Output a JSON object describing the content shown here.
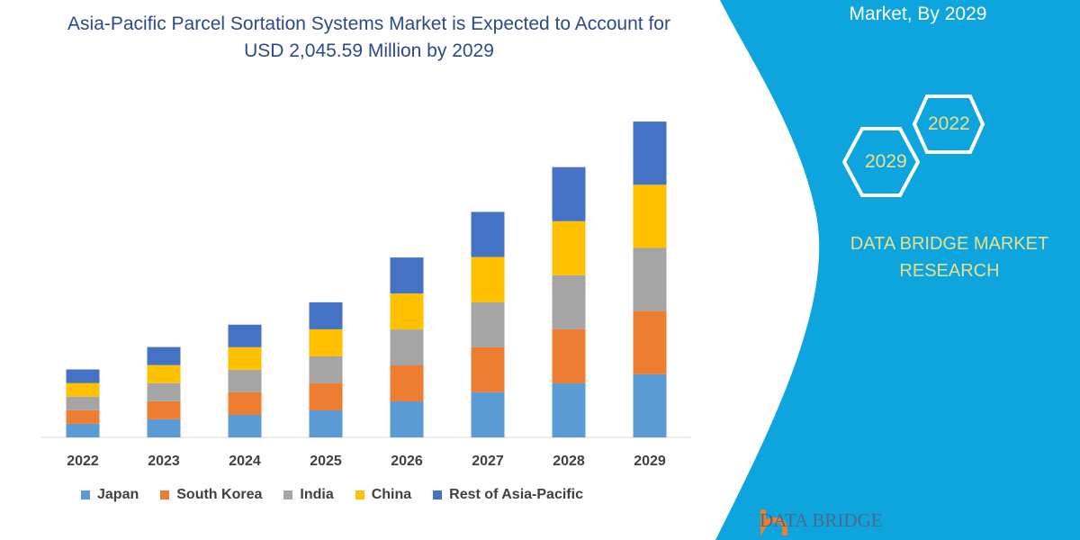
{
  "title_line1": "Asia-Pacific Parcel Sortation Systems Market is Expected to Account for",
  "title_line2": "USD 2,045.59 Million by 2029",
  "panel": {
    "title": "Market, By 2029",
    "hex_2029": "2029",
    "hex_2022": "2022",
    "brand_line1": "DATA BRIDGE MARKET",
    "brand_line2": "RESEARCH",
    "logo_text": "DATA BRIDGE",
    "color": "#0ea5df"
  },
  "chart_data": {
    "type": "bar",
    "stacked": true,
    "title": "Asia-Pacific Parcel Sortation Systems Market is Expected to Account for USD 2,045.59 Million by 2029",
    "categories": [
      "2022",
      "2023",
      "2024",
      "2025",
      "2026",
      "2027",
      "2028",
      "2029"
    ],
    "series": [
      {
        "name": "Japan",
        "color": "#5b9bd5",
        "values": [
          88,
          117,
          146,
          175,
          233,
          292,
          350,
          409
        ]
      },
      {
        "name": "South Korea",
        "color": "#ed7d31",
        "values": [
          88,
          117,
          146,
          175,
          233,
          292,
          350,
          409
        ]
      },
      {
        "name": "India",
        "color": "#a5a5a5",
        "values": [
          88,
          117,
          146,
          175,
          233,
          292,
          350,
          409
        ]
      },
      {
        "name": "China",
        "color": "#ffc000",
        "values": [
          88,
          117,
          146,
          175,
          233,
          292,
          350,
          409
        ]
      },
      {
        "name": "Rest of Asia-Pacific",
        "color": "#4472c4",
        "values": [
          88,
          117,
          146,
          175,
          233,
          292,
          350,
          409
        ]
      }
    ],
    "ylim": [
      0,
      2045.59
    ],
    "grid": false,
    "legend_position": "bottom"
  }
}
